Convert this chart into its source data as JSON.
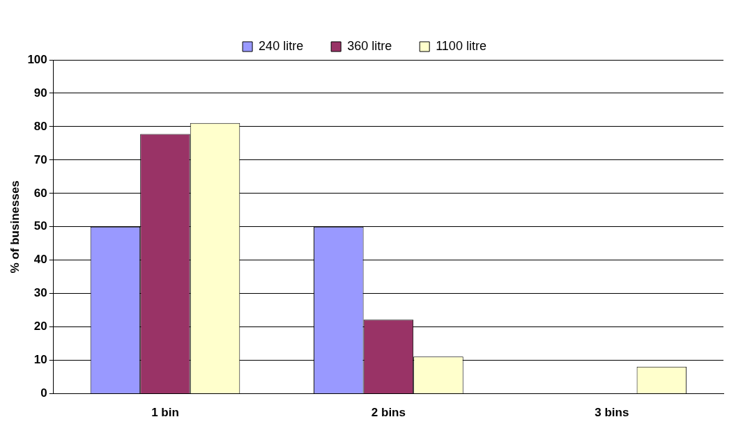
{
  "chart_data": {
    "type": "bar",
    "ylabel": "% of businesses",
    "categories": [
      "1 bin",
      "2 bins",
      "3 bins"
    ],
    "series": [
      {
        "name": "240 litre",
        "color": "#9999ff",
        "values": [
          50,
          50,
          0
        ]
      },
      {
        "name": "360 litre",
        "color": "#993366",
        "values": [
          77.8,
          22.2,
          0
        ]
      },
      {
        "name": "1100 litre",
        "color": "#ffffcc",
        "values": [
          81.1,
          11.1,
          8.1
        ]
      }
    ],
    "ylim": [
      0,
      100
    ],
    "yticks": [
      0,
      10,
      20,
      30,
      40,
      50,
      60,
      70,
      80,
      90,
      100
    ],
    "grid": "y",
    "legend": "top"
  }
}
